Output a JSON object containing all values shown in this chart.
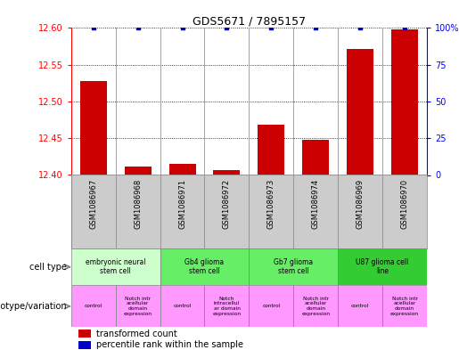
{
  "title": "GDS5671 / 7895157",
  "samples": [
    "GSM1086967",
    "GSM1086968",
    "GSM1086971",
    "GSM1086972",
    "GSM1086973",
    "GSM1086974",
    "GSM1086969",
    "GSM1086970"
  ],
  "red_values": [
    12.528,
    12.412,
    12.415,
    12.407,
    12.468,
    12.448,
    12.572,
    12.598
  ],
  "blue_values": [
    100,
    100,
    100,
    100,
    100,
    100,
    100,
    100
  ],
  "ylim_left": [
    12.4,
    12.6
  ],
  "ylim_right": [
    0,
    100
  ],
  "yticks_left": [
    12.4,
    12.45,
    12.5,
    12.55,
    12.6
  ],
  "yticks_right": [
    0,
    25,
    50,
    75,
    100
  ],
  "cell_types": [
    {
      "label": "embryonic neural\nstem cell",
      "color": "#ccffcc",
      "start": 0,
      "end": 2
    },
    {
      "label": "Gb4 glioma\nstem cell",
      "color": "#66ee66",
      "start": 2,
      "end": 4
    },
    {
      "label": "Gb7 glioma\nstem cell",
      "color": "#66ee66",
      "start": 4,
      "end": 6
    },
    {
      "label": "U87 glioma cell\nline",
      "color": "#33cc33",
      "start": 6,
      "end": 8
    }
  ],
  "genotypes": [
    {
      "label": "control",
      "start": 0,
      "end": 1
    },
    {
      "label": "Notch intr\nacellular\ndomain\nexpression",
      "start": 1,
      "end": 2
    },
    {
      "label": "control",
      "start": 2,
      "end": 3
    },
    {
      "label": "Notch\nintracellul\nar domain\nexpression",
      "start": 3,
      "end": 4
    },
    {
      "label": "control",
      "start": 4,
      "end": 5
    },
    {
      "label": "Notch intr\nacellular\ndomain\nexpression",
      "start": 5,
      "end": 6
    },
    {
      "label": "control",
      "start": 6,
      "end": 7
    },
    {
      "label": "Notch intr\nacellular\ndomain\nexpression",
      "start": 7,
      "end": 8
    }
  ],
  "geno_color": "#ff99ff",
  "bar_bottom": 12.4,
  "bar_color_red": "#cc0000",
  "bar_color_blue": "#0000cc",
  "sample_bg_color": "#cccccc",
  "label_cell_type": "cell type",
  "label_genotype": "genotype/variation",
  "legend_red": "transformed count",
  "legend_blue": "percentile rank within the sample",
  "fig_width": 5.15,
  "fig_height": 3.93,
  "dpi": 100
}
